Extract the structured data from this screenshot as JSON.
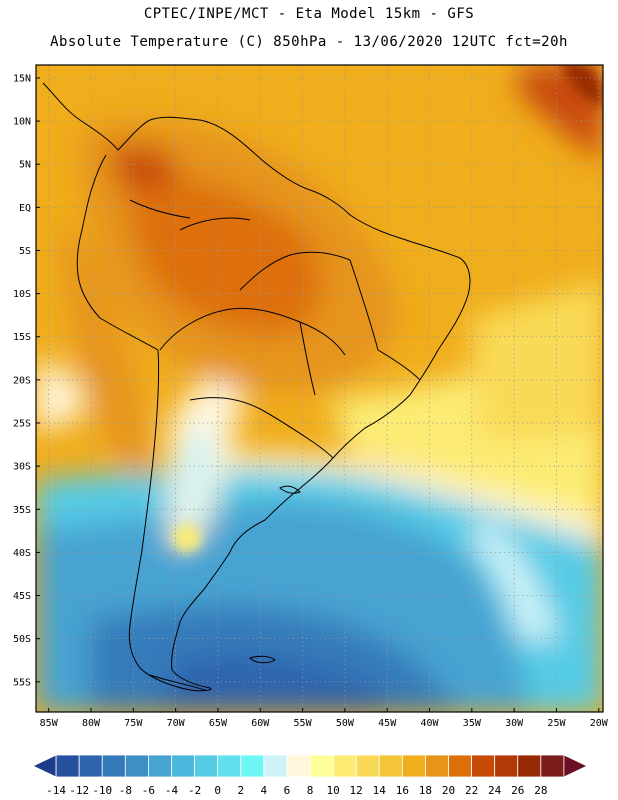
{
  "title": {
    "line1": "CPTEC/INPE/MCT -  Eta Model 15km - GFS",
    "line2": "Absolute Temperature (C) 850hPa - 13/06/2020 12UTC fct=20h"
  },
  "map": {
    "lat_labels": [
      "15N",
      "10N",
      "5N",
      "EQ",
      "5S",
      "10S",
      "15S",
      "20S",
      "25S",
      "30S",
      "35S",
      "40S",
      "45S",
      "50S",
      "55S"
    ],
    "lon_labels": [
      "85W",
      "80W",
      "75W",
      "70W",
      "65W",
      "60W",
      "55W",
      "50W",
      "45W",
      "40W",
      "35W",
      "30W",
      "25W",
      "20W"
    ],
    "domain": {
      "lon_min": -86.5,
      "lon_max": -19.5,
      "lat_min": -58.5,
      "lat_max": 16.5
    }
  },
  "colorbar": {
    "tick_labels": [
      "-14",
      "-12",
      "-10",
      "-8",
      "-6",
      "-4",
      "-2",
      "0",
      "2",
      "4",
      "6",
      "8",
      "10",
      "12",
      "14",
      "16",
      "18",
      "20",
      "22",
      "24",
      "26",
      "28"
    ],
    "colors": [
      "#1f3c8c",
      "#26519e",
      "#2e64ad",
      "#347aba",
      "#3f8fc7",
      "#47a3d2",
      "#4cb7dd",
      "#55cbe6",
      "#62dfee",
      "#6ef5f5",
      "#cdf3f8",
      "#fff6dc",
      "#ffff99",
      "#fcec74",
      "#f9da56",
      "#f4c539",
      "#f0ad1c",
      "#e6941a",
      "#dd6f0a",
      "#c84a07",
      "#b03906",
      "#962a05",
      "#7b1e1b",
      "#6b0f25"
    ]
  }
}
